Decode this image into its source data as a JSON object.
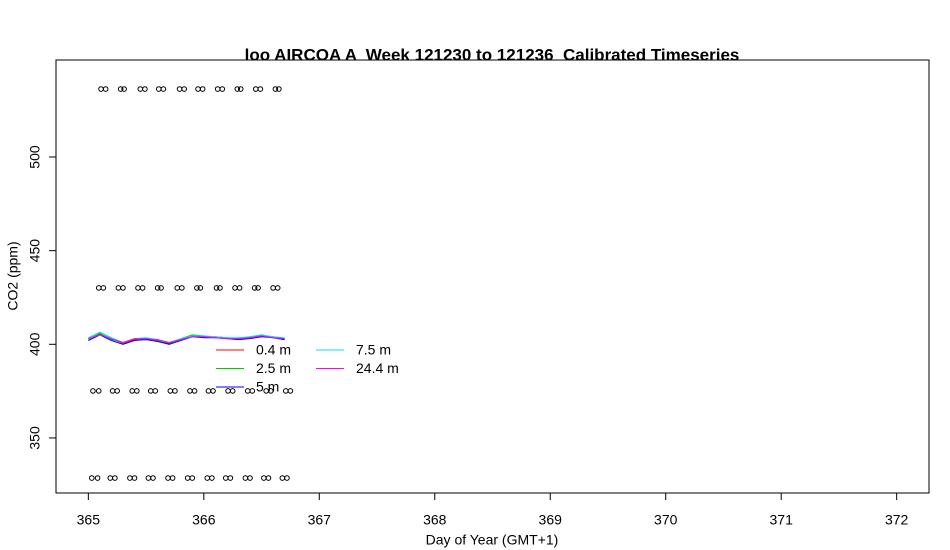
{
  "chart_data": {
    "type": "line",
    "title": "loo AIRCOA A  Week 121230 to 121236  Calibrated Timeseries",
    "x_label": "Day of Year (GMT+1)",
    "y_label": "CO2 (ppm)",
    "xlim": [
      364.72,
      372.28
    ],
    "ylim": [
      320.6,
      551.8
    ],
    "xticks": [
      365,
      366,
      367,
      368,
      369,
      370,
      371,
      372
    ],
    "yticks": [
      350,
      400,
      450,
      500
    ],
    "x": [
      365.0,
      365.1,
      365.2,
      365.3,
      365.4,
      365.5,
      365.6,
      365.7,
      365.8,
      365.9,
      366.0,
      366.1,
      366.2,
      366.3,
      366.4,
      366.5,
      366.6,
      366.7
    ],
    "series": [
      {
        "name": "0.4 m",
        "color": "#ff0000",
        "type": "line",
        "values": [
          403,
          405.5,
          403,
          400.5,
          402.5,
          403,
          402,
          400.5,
          402.5,
          404.5,
          404,
          404,
          403.5,
          403,
          403.5,
          404.5,
          404,
          403
        ]
      },
      {
        "name": "2.5 m",
        "color": "#00cc00",
        "type": "line",
        "values": [
          402.5,
          406,
          402.5,
          401,
          403,
          402.5,
          402.5,
          400,
          403,
          405,
          404.5,
          403.5,
          403,
          403,
          404,
          405,
          403.5,
          402.5
        ]
      },
      {
        "name": "5 m",
        "color": "#0000ff",
        "type": "line",
        "values": [
          402,
          405,
          402,
          400,
          402,
          402.5,
          401.5,
          400,
          402,
          404,
          403.5,
          403.5,
          403,
          402.5,
          403,
          404,
          403.5,
          402.5
        ]
      },
      {
        "name": "7.5 m",
        "color": "#00e5e5",
        "type": "line",
        "values": [
          403.5,
          406.5,
          403.5,
          401,
          403,
          403.5,
          402.5,
          401,
          403,
          404.5,
          404.5,
          404,
          403.5,
          403.5,
          404,
          405,
          404,
          403.5
        ]
      },
      {
        "name": "24.4 m",
        "color": "#ff00ff",
        "type": "line",
        "values": [
          403,
          405,
          403,
          401,
          403,
          403,
          402.5,
          401,
          402.5,
          404,
          404,
          403.5,
          403,
          403,
          403.5,
          404.5,
          403.5,
          403
        ]
      },
      {
        "type": "scatter",
        "color": "#000000",
        "x": [
          365.11,
          365.15,
          365.28,
          365.31,
          365.45,
          365.49,
          365.61,
          365.65,
          365.79,
          365.83,
          365.95,
          365.99,
          366.12,
          366.16,
          366.29,
          366.32,
          366.45,
          366.49,
          366.62,
          366.65
        ],
        "values": [
          536.3,
          536.3,
          536.3,
          536.3,
          536.3,
          536.3,
          536.3,
          536.3,
          536.3,
          536.3,
          536.3,
          536.3,
          536.3,
          536.3,
          536.3,
          536.3,
          536.3,
          536.3,
          536.3,
          536.3
        ]
      },
      {
        "type": "scatter",
        "color": "#000000",
        "x": [
          365.09,
          365.13,
          365.26,
          365.3,
          365.43,
          365.47,
          365.6,
          365.63,
          365.77,
          365.81,
          365.94,
          365.97,
          366.11,
          366.14,
          366.27,
          366.31,
          366.44,
          366.47,
          366.6,
          366.64
        ],
        "values": [
          430.1,
          430.1,
          430.1,
          430.1,
          430.1,
          430.1,
          430.1,
          430.1,
          430.1,
          430.1,
          430.1,
          430.1,
          430.1,
          430.1,
          430.1,
          430.1,
          430.1,
          430.1,
          430.1,
          430.1
        ]
      },
      {
        "type": "scatter",
        "color": "#000000",
        "x": [
          365.04,
          365.09,
          365.21,
          365.25,
          365.38,
          365.42,
          365.54,
          365.58,
          365.71,
          365.75,
          365.88,
          365.92,
          366.04,
          366.08,
          366.21,
          366.25,
          366.38,
          366.42,
          366.54,
          366.58,
          366.71,
          366.75
        ],
        "values": [
          375.1,
          375.1,
          375.1,
          375.1,
          375.1,
          375.1,
          375.1,
          375.1,
          375.1,
          375.1,
          375.1,
          375.1,
          375.1,
          375.1,
          375.1,
          375.1,
          375.1,
          375.1,
          375.1,
          375.1,
          375.1,
          375.1
        ]
      },
      {
        "type": "scatter",
        "color": "#000000",
        "x": [
          365.03,
          365.08,
          365.19,
          365.23,
          365.36,
          365.4,
          365.52,
          365.56,
          365.69,
          365.73,
          365.86,
          365.9,
          366.03,
          366.07,
          366.19,
          366.23,
          366.36,
          366.4,
          366.52,
          366.56,
          366.68,
          366.72
        ],
        "values": [
          328.6,
          328.6,
          328.6,
          328.6,
          328.6,
          328.6,
          328.6,
          328.6,
          328.6,
          328.6,
          328.6,
          328.6,
          328.6,
          328.6,
          328.6,
          328.6,
          328.6,
          328.6,
          328.6,
          328.6,
          328.6,
          328.6
        ]
      }
    ]
  }
}
